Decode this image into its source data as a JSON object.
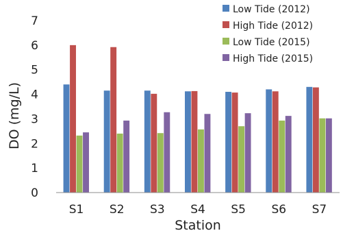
{
  "chart_data": {
    "type": "bar",
    "title": "",
    "xlabel": "Station",
    "ylabel": "DO (mg/L)",
    "ylim": [
      0,
      7
    ],
    "yticks": [
      "0",
      "1",
      "2",
      "3",
      "4",
      "5",
      "6",
      "7"
    ],
    "grid": false,
    "legend_position": "top-right",
    "categories": [
      "S1",
      "S2",
      "S3",
      "S4",
      "S5",
      "S6",
      "S7"
    ],
    "series": [
      {
        "name": "Low Tide (2012)",
        "color": "#4f81bd",
        "values": [
          4.4,
          4.15,
          4.15,
          4.12,
          4.1,
          4.2,
          4.3
        ]
      },
      {
        "name": "High Tide (2012)",
        "color": "#c0504d",
        "values": [
          6.0,
          5.92,
          4.02,
          4.13,
          4.07,
          4.12,
          4.28
        ]
      },
      {
        "name": "Low Tide (2015)",
        "color": "#9bbb59",
        "values": [
          2.32,
          2.4,
          2.42,
          2.57,
          2.7,
          2.93,
          3.02
        ]
      },
      {
        "name": "High Tide (2015)",
        "color": "#8064a2",
        "values": [
          2.45,
          2.93,
          3.27,
          3.2,
          3.23,
          3.12,
          3.02
        ]
      }
    ]
  }
}
